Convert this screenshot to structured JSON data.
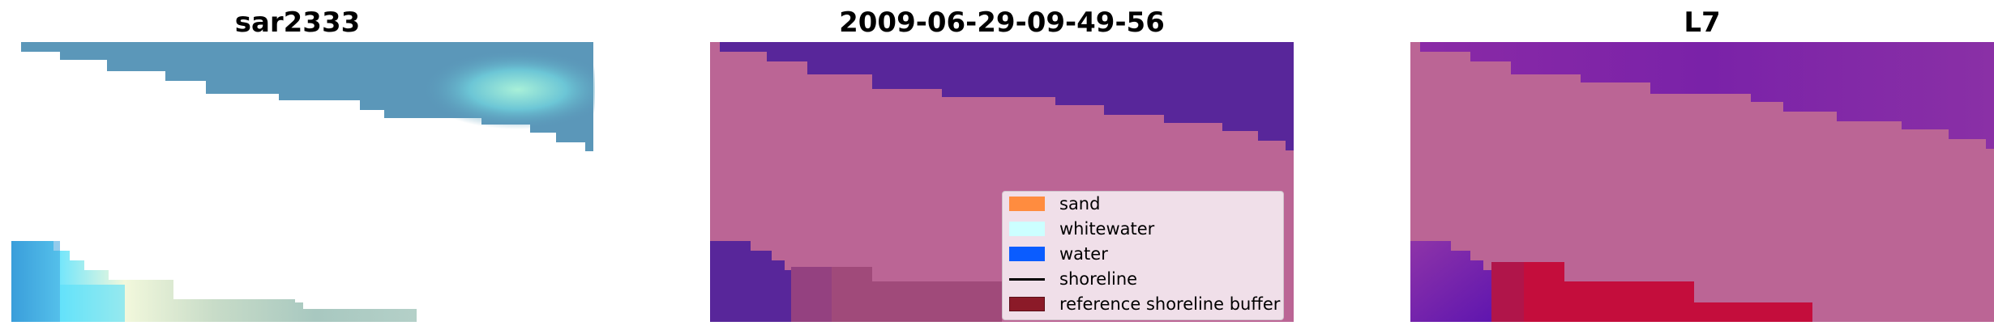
{
  "panels": [
    {
      "title": "sar2333"
    },
    {
      "title": "2009-06-29-09-49-56"
    },
    {
      "title": "L7"
    }
  ],
  "legend": {
    "items": [
      {
        "label": "sand",
        "color": "#ff8c3f",
        "kind": "patch"
      },
      {
        "label": "whitewater",
        "color": "#ccffff",
        "kind": "patch"
      },
      {
        "label": "water",
        "color": "#0a5cff",
        "kind": "patch"
      },
      {
        "label": "shoreline",
        "color": "#000000",
        "kind": "line"
      },
      {
        "label": "reference shoreline buffer",
        "color": "#8b1a28",
        "kind": "patch"
      }
    ]
  },
  "colors": {
    "background": "#ffffff",
    "rgb_water": "#5a96b8",
    "rgb_whitewater": "#8fe0d8",
    "rgb_surf": "#73e8f8",
    "rgb_sand_light": "#e8f4d8",
    "overlay_sand": "#bb6595",
    "overlay_water": "#5a249a",
    "overlay_buffer": "#9d4a78",
    "prob_water": "#7a2aa2",
    "prob_water_dark": "#5a12a8",
    "prob_shoreline": "#c40d3c"
  }
}
